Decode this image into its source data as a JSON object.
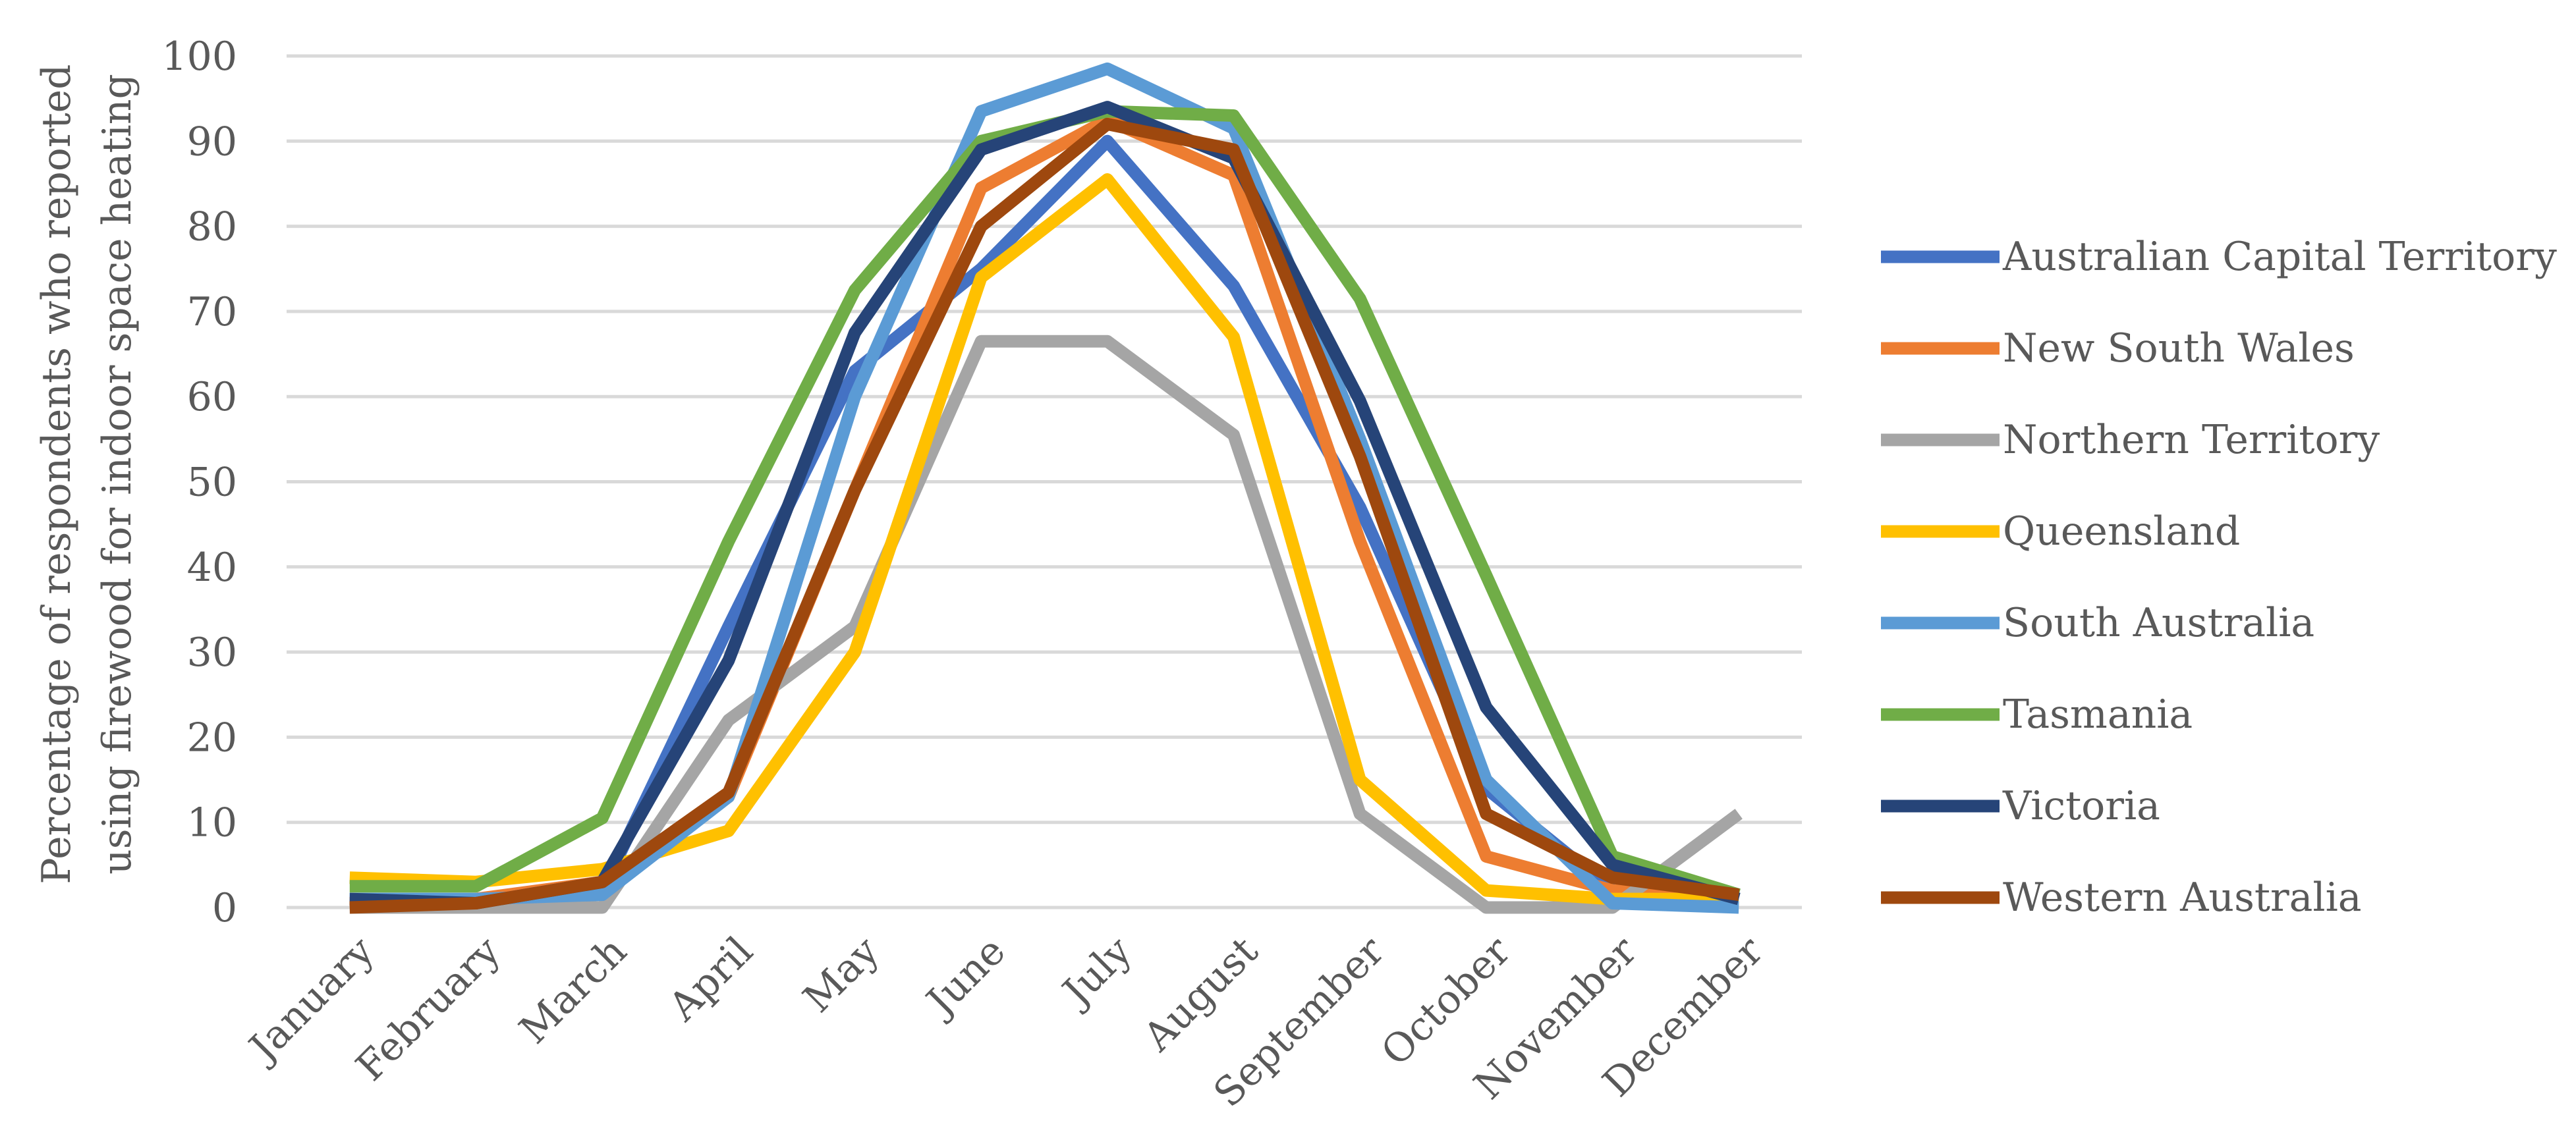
{
  "chart_data": {
    "type": "line",
    "title": "",
    "xlabel": "",
    "ylabel_lines": [
      "Percentage of respondents who reported",
      "using firewood for indoor space heating"
    ],
    "ylim": [
      0,
      100
    ],
    "yticks": [
      "0",
      "10",
      "20",
      "30",
      "40",
      "50",
      "60",
      "70",
      "80",
      "90",
      "100"
    ],
    "grid": true,
    "legend_position": "right",
    "categories": [
      "January",
      "February",
      "March",
      "April",
      "May",
      "June",
      "July",
      "August",
      "September",
      "October",
      "November",
      "December"
    ],
    "series": [
      {
        "name": "Australian Capital Territory",
        "color": "#4472C4",
        "values": [
          1,
          1,
          2,
          33,
          63,
          75,
          90,
          73,
          47,
          14,
          2,
          1
        ]
      },
      {
        "name": "New South Wales",
        "color": "#ED7D31",
        "values": [
          0.5,
          1,
          3,
          13,
          49,
          84.5,
          92.5,
          86,
          43,
          6,
          2,
          1
        ]
      },
      {
        "name": "Northern Territory",
        "color": "#A5A5A5",
        "values": [
          0,
          0,
          0,
          22,
          33,
          66.5,
          66.5,
          55.5,
          11,
          0,
          0,
          11
        ]
      },
      {
        "name": "Queensland",
        "color": "#FFC000",
        "values": [
          3.5,
          3,
          4.5,
          9,
          30,
          74,
          85.5,
          67,
          15,
          2,
          1,
          1
        ]
      },
      {
        "name": "South Australia",
        "color": "#5B9BD5",
        "values": [
          1,
          1,
          1.5,
          13,
          60,
          93.5,
          98.5,
          91.5,
          55,
          15,
          0.5,
          0
        ]
      },
      {
        "name": "Tasmania",
        "color": "#70AD47",
        "values": [
          2.5,
          2.5,
          10.5,
          43,
          72.5,
          90,
          93.5,
          93,
          71.5,
          39,
          6,
          1.5
        ]
      },
      {
        "name": "Victoria",
        "color": "#264478",
        "values": [
          1,
          0.5,
          3,
          29,
          67.5,
          89,
          94,
          88,
          59.5,
          23.5,
          5,
          1
        ]
      },
      {
        "name": "Western Australia",
        "color": "#9E480E",
        "values": [
          0,
          0.5,
          3,
          13.5,
          49,
          80,
          92,
          89,
          53,
          11,
          3.5,
          1.5
        ]
      }
    ]
  }
}
